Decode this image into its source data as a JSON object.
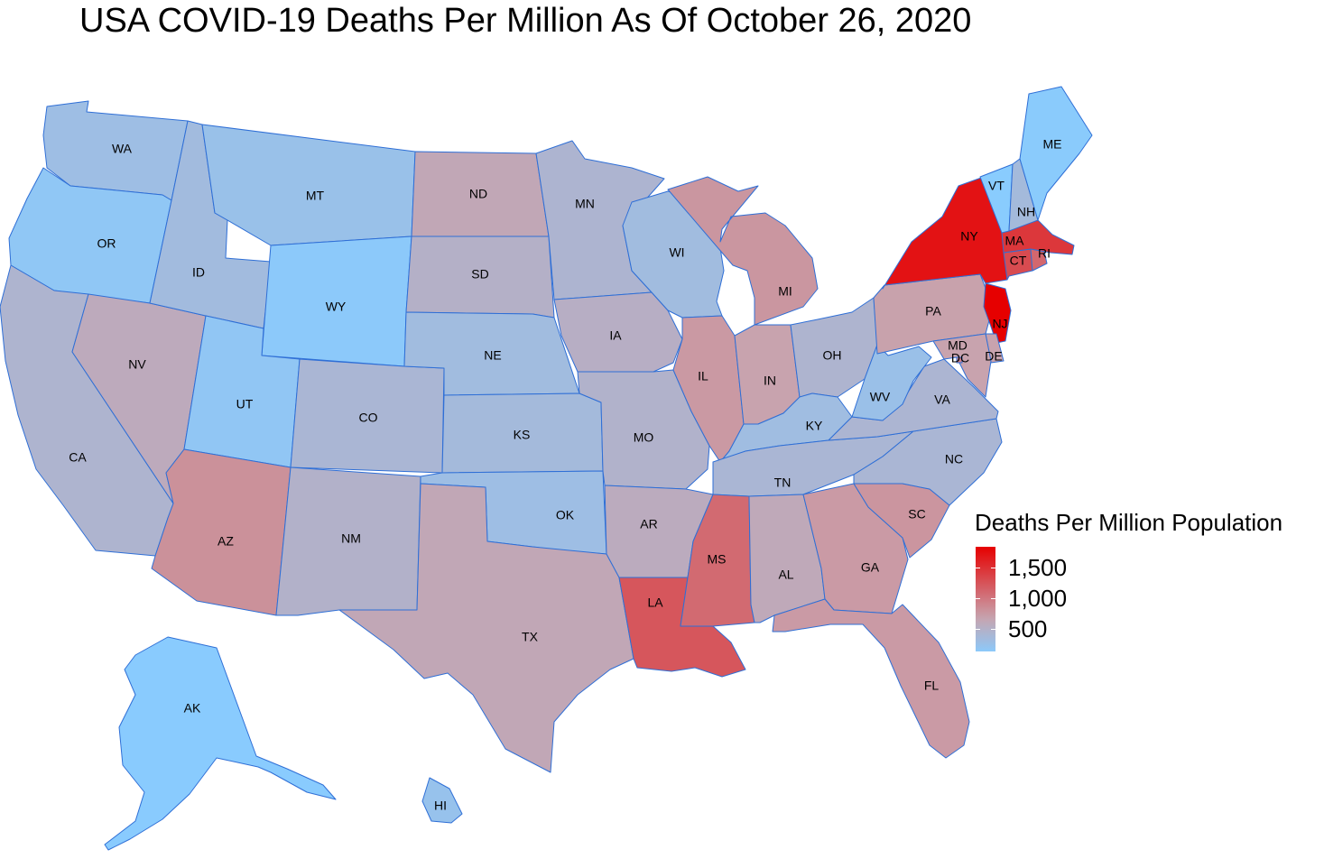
{
  "title": "USA COVID-19 Deaths Per Million As Of October 26, 2020",
  "legend": {
    "title": "Deaths Per Million Population",
    "min_value": 130,
    "max_value": 1830,
    "low_color": "#88CCFF",
    "mid_color": "#C8A3AE",
    "high_color": "#E60000",
    "ticks": [
      {
        "value": 1500,
        "label": "1,500"
      },
      {
        "value": 1000,
        "label": "1,000"
      },
      {
        "value": 500,
        "label": "500"
      }
    ]
  },
  "states": [
    {
      "abbr": "WA",
      "value": 290
    },
    {
      "abbr": "OR",
      "value": 160
    },
    {
      "abbr": "CA",
      "value": 440
    },
    {
      "abbr": "NV",
      "value": 580
    },
    {
      "abbr": "ID",
      "value": 330
    },
    {
      "abbr": "MT",
      "value": 250
    },
    {
      "abbr": "WY",
      "value": 130
    },
    {
      "abbr": "UT",
      "value": 170
    },
    {
      "abbr": "AZ",
      "value": 810
    },
    {
      "abbr": "CO",
      "value": 400
    },
    {
      "abbr": "NM",
      "value": 480
    },
    {
      "abbr": "ND",
      "value": 620
    },
    {
      "abbr": "SD",
      "value": 500
    },
    {
      "abbr": "NE",
      "value": 320
    },
    {
      "abbr": "KS",
      "value": 350
    },
    {
      "abbr": "OK",
      "value": 290
    },
    {
      "abbr": "TX",
      "value": 620
    },
    {
      "abbr": "MN",
      "value": 430
    },
    {
      "abbr": "IA",
      "value": 520
    },
    {
      "abbr": "MO",
      "value": 470
    },
    {
      "abbr": "AR",
      "value": 560
    },
    {
      "abbr": "LA",
      "value": 1220
    },
    {
      "abbr": "WI",
      "value": 320
    },
    {
      "abbr": "IL",
      "value": 750
    },
    {
      "abbr": "MI",
      "value": 770
    },
    {
      "abbr": "IN",
      "value": 680
    },
    {
      "abbr": "OH",
      "value": 440
    },
    {
      "abbr": "KY",
      "value": 310
    },
    {
      "abbr": "TN",
      "value": 400
    },
    {
      "abbr": "MS",
      "value": 1080
    },
    {
      "abbr": "AL",
      "value": 600
    },
    {
      "abbr": "GA",
      "value": 740
    },
    {
      "abbr": "FL",
      "value": 740
    },
    {
      "abbr": "SC",
      "value": 780
    },
    {
      "abbr": "NC",
      "value": 400
    },
    {
      "abbr": "VA",
      "value": 420
    },
    {
      "abbr": "WV",
      "value": 260
    },
    {
      "abbr": "PA",
      "value": 690
    },
    {
      "abbr": "NY",
      "value": 1700
    },
    {
      "abbr": "NJ",
      "value": 1830
    },
    {
      "abbr": "DE",
      "value": 680
    },
    {
      "abbr": "MD",
      "value": 680
    },
    {
      "abbr": "DC",
      "value": 920
    },
    {
      "abbr": "CT",
      "value": 1300
    },
    {
      "abbr": "RI",
      "value": 1100
    },
    {
      "abbr": "MA",
      "value": 1440
    },
    {
      "abbr": "VT",
      "value": 95
    },
    {
      "abbr": "NH",
      "value": 350
    },
    {
      "abbr": "ME",
      "value": 110
    },
    {
      "abbr": "AK",
      "value": 100
    },
    {
      "abbr": "HI",
      "value": 230
    }
  ]
}
